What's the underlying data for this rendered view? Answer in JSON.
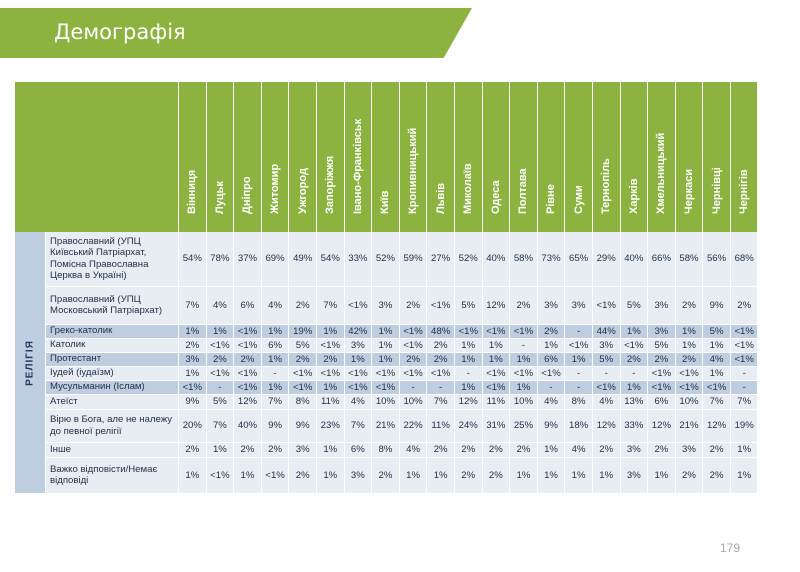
{
  "header": {
    "title": "Демографія"
  },
  "table": {
    "section_label": "РЕЛІГІЯ",
    "cities": [
      "Вінниця",
      "Луцьк",
      "Дніпро",
      "Житомир",
      "Ужгород",
      "Запоріжжя",
      "Івано-Франківськ",
      "Київ",
      "Кропивницький",
      "Львів",
      "Миколаїв",
      "Одеса",
      "Полтава",
      "Рівне",
      "Суми",
      "Тернопіль",
      "Харків",
      "Хмельницький",
      "Черкаси",
      "Чернівці",
      "Чернігів"
    ],
    "rows": [
      {
        "label": "Православний (УПЦ Київський Патріархат, Помісна Православна Церква в Україні)",
        "values": [
          "54%",
          "78%",
          "37%",
          "69%",
          "49%",
          "54%",
          "33%",
          "52%",
          "59%",
          "27%",
          "52%",
          "40%",
          "58%",
          "73%",
          "65%",
          "29%",
          "40%",
          "66%",
          "58%",
          "56%",
          "68%"
        ]
      },
      {
        "label": "Православний (УПЦ Московський Патріархат)",
        "values": [
          "7%",
          "4%",
          "6%",
          "4%",
          "2%",
          "7%",
          "<1%",
          "3%",
          "2%",
          "<1%",
          "5%",
          "12%",
          "2%",
          "3%",
          "3%",
          "<1%",
          "5%",
          "3%",
          "2%",
          "9%",
          "2%"
        ]
      },
      {
        "label": "Греко-католик",
        "values": [
          "1%",
          "1%",
          "<1%",
          "1%",
          "19%",
          "1%",
          "42%",
          "1%",
          "<1%",
          "48%",
          "<1%",
          "<1%",
          "<1%",
          "2%",
          "-",
          "44%",
          "1%",
          "3%",
          "1%",
          "5%",
          "<1%"
        ]
      },
      {
        "label": "Католик",
        "values": [
          "2%",
          "<1%",
          "<1%",
          "6%",
          "5%",
          "<1%",
          "3%",
          "1%",
          "<1%",
          "2%",
          "1%",
          "1%",
          "-",
          "1%",
          "<1%",
          "3%",
          "<1%",
          "5%",
          "1%",
          "1%",
          "<1%"
        ]
      },
      {
        "label": "Протестант",
        "values": [
          "3%",
          "2%",
          "2%",
          "1%",
          "2%",
          "2%",
          "1%",
          "1%",
          "2%",
          "2%",
          "1%",
          "1%",
          "1%",
          "6%",
          "1%",
          "5%",
          "2%",
          "2%",
          "2%",
          "4%",
          "<1%"
        ]
      },
      {
        "label": "Іудей (іудаїзм)",
        "values": [
          "1%",
          "<1%",
          "<1%",
          "-",
          "<1%",
          "<1%",
          "<1%",
          "<1%",
          "<1%",
          "<1%",
          "-",
          "<1%",
          "<1%",
          "<1%",
          "-",
          "-",
          "-",
          "<1%",
          "<1%",
          "1%",
          "-"
        ]
      },
      {
        "label": "Мусульманин (Іслам)",
        "values": [
          "<1%",
          "-",
          "<1%",
          "1%",
          "<1%",
          "1%",
          "<1%",
          "<1%",
          "-",
          "-",
          "1%",
          "<1%",
          "1%",
          "-",
          "-",
          "<1%",
          "1%",
          "<1%",
          "<1%",
          "<1%",
          "-"
        ]
      },
      {
        "label": "Атеїст",
        "values": [
          "9%",
          "5%",
          "12%",
          "7%",
          "8%",
          "11%",
          "4%",
          "10%",
          "10%",
          "7%",
          "12%",
          "11%",
          "10%",
          "4%",
          "8%",
          "4%",
          "13%",
          "6%",
          "10%",
          "7%",
          "7%"
        ]
      },
      {
        "label": "Вірю в Бога, але не належу до певної релігії",
        "values": [
          "20%",
          "7%",
          "40%",
          "9%",
          "9%",
          "23%",
          "7%",
          "21%",
          "22%",
          "11%",
          "24%",
          "31%",
          "25%",
          "9%",
          "18%",
          "12%",
          "33%",
          "12%",
          "21%",
          "12%",
          "19%"
        ]
      },
      {
        "label": "Інше",
        "values": [
          "2%",
          "1%",
          "2%",
          "2%",
          "3%",
          "1%",
          "6%",
          "8%",
          "4%",
          "2%",
          "2%",
          "2%",
          "2%",
          "1%",
          "4%",
          "2%",
          "3%",
          "2%",
          "3%",
          "2%",
          "1%"
        ]
      },
      {
        "label": "Важко відповісти/Немає відповіді",
        "values": [
          "1%",
          "<1%",
          "1%",
          "<1%",
          "2%",
          "1%",
          "3%",
          "2%",
          "1%",
          "1%",
          "2%",
          "2%",
          "1%",
          "1%",
          "1%",
          "1%",
          "3%",
          "1%",
          "2%",
          "2%",
          "1%"
        ]
      }
    ]
  },
  "footer": {
    "page_number": "179"
  }
}
